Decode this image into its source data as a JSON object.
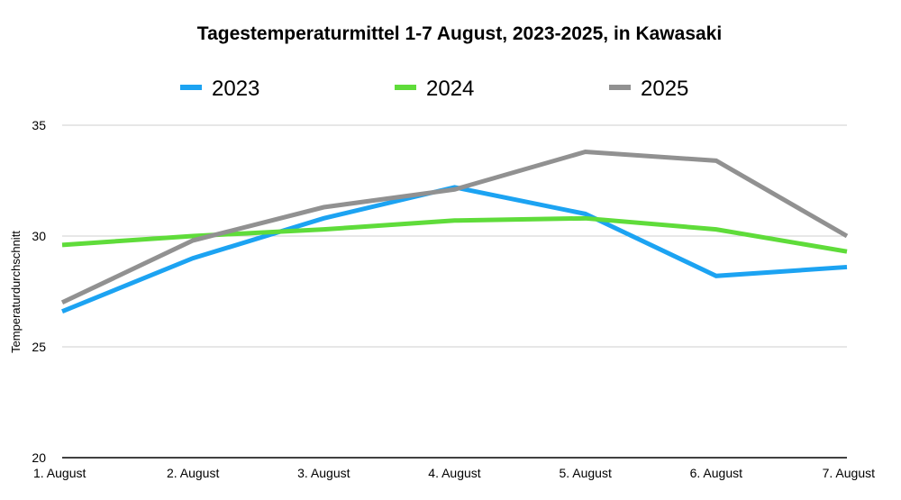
{
  "chart_data": {
    "type": "line",
    "title": "Tagestemperaturmittel 1-7 August, 2023-2025, in Kawasaki",
    "xlabel": "",
    "ylabel": "Temperaturdurchschnitt",
    "categories": [
      "1. August",
      "2. August",
      "3. August",
      "4. August",
      "5. August",
      "6. August",
      "7. August"
    ],
    "ylim": [
      20,
      35
    ],
    "yticks": [
      20,
      25,
      30,
      35
    ],
    "grid": true,
    "legend_position": "top",
    "series": [
      {
        "name": "2023",
        "color": "#1ca3f2",
        "values": [
          26.6,
          29.0,
          30.8,
          32.2,
          31.0,
          28.2,
          28.6
        ]
      },
      {
        "name": "2024",
        "color": "#5fdc3a",
        "values": [
          29.6,
          30.0,
          30.3,
          30.7,
          30.8,
          30.3,
          29.3
        ]
      },
      {
        "name": "2025",
        "color": "#919191",
        "values": [
          27.0,
          29.8,
          31.3,
          32.1,
          33.8,
          33.4,
          30.0
        ]
      }
    ]
  }
}
